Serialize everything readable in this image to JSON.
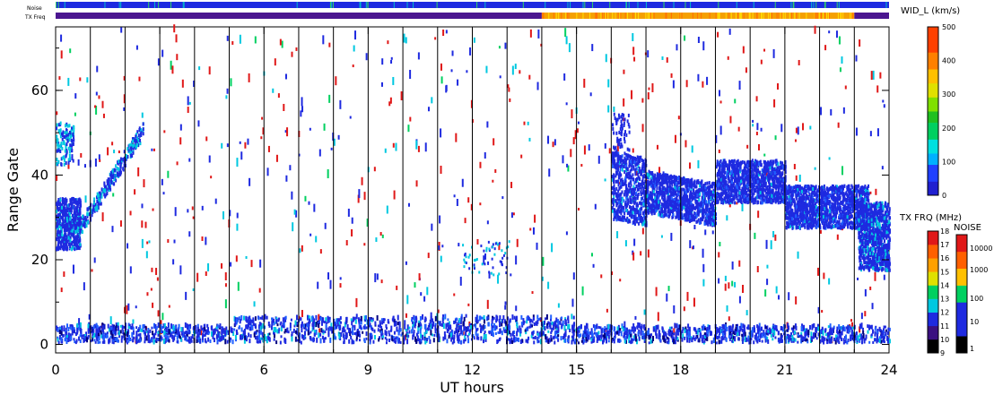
{
  "chart_data": {
    "type": "heatmap",
    "title": "",
    "xlabel": "UT hours",
    "ylabel": "Range Gate",
    "xlim": [
      0,
      24
    ],
    "ylim": [
      -2,
      75
    ],
    "x_ticks": [
      "0",
      "3",
      "6",
      "9",
      "12",
      "15",
      "18",
      "21",
      "24"
    ],
    "y_ticks": [
      "0",
      "20",
      "40",
      "60"
    ],
    "vertical_hour_markers": [
      1,
      2,
      3,
      4,
      5,
      6,
      7,
      8,
      9,
      10,
      11,
      12,
      13,
      14,
      15,
      16,
      17,
      18,
      19,
      20,
      21,
      22,
      23
    ],
    "top_strips": [
      {
        "label": "Noise",
        "segments": [
          {
            "start": 0,
            "end": 24,
            "color": "#1e2ae0"
          }
        ]
      },
      {
        "label": "TX Freq",
        "segments": [
          {
            "start": 0,
            "end": 14,
            "color": "#4b1690"
          },
          {
            "start": 14,
            "end": 23,
            "color": "#f5a000"
          },
          {
            "start": 23,
            "end": 24,
            "color": "#4b1690"
          }
        ]
      }
    ],
    "velocity_width_colorbar": {
      "title": "WID_L (km/s)",
      "range": [
        0,
        500
      ],
      "ticks": [
        "0",
        "100",
        "200",
        "300",
        "400",
        "500"
      ]
    },
    "tx_freq_colorbar": {
      "title": "TX FRQ (MHz)",
      "ticks": [
        "9",
        "10",
        "11",
        "12",
        "13",
        "14",
        "15",
        "16",
        "17",
        "18"
      ]
    },
    "noise_colorbar": {
      "title": "NOISE",
      "ticks": [
        "1",
        "10",
        "100",
        "1000",
        "10000"
      ]
    },
    "scatter_regions": [
      {
        "description_key": "early",
        "x": [
          0,
          2.5
        ],
        "y": [
          20,
          52
        ],
        "dominant": "blue"
      },
      {
        "description_key": "late",
        "x": [
          16,
          24
        ],
        "y": [
          15,
          55
        ],
        "dominant": "blue"
      },
      {
        "description_key": "near-range",
        "x": [
          0,
          24
        ],
        "y": [
          0,
          5
        ],
        "dominant": "blue"
      }
    ]
  }
}
